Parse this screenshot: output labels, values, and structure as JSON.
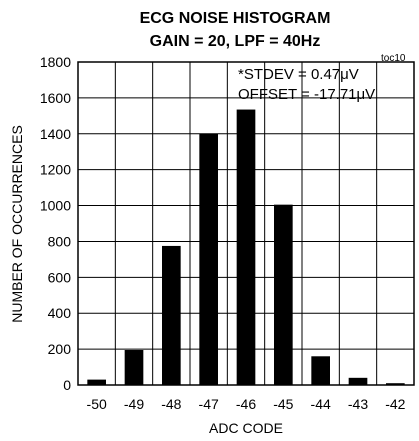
{
  "chart_data": {
    "type": "bar",
    "title": "ECG NOISE HISTOGRAM",
    "subtitle": "GAIN = 20, LPF = 40Hz",
    "figure_tag": "toc10",
    "xlabel": "ADC CODE",
    "ylabel": "NUMBER OF OCCURRENCES",
    "categories": [
      "-50",
      "-49",
      "-48",
      "-47",
      "-46",
      "-45",
      "-44",
      "-43",
      "-42"
    ],
    "values": [
      30,
      195,
      775,
      1400,
      1535,
      1005,
      160,
      40,
      10
    ],
    "ylim": [
      0,
      1800
    ],
    "yticks": [
      0,
      200,
      400,
      600,
      800,
      1000,
      1200,
      1400,
      1600,
      1800
    ],
    "grid": true,
    "annotations": [
      "*STDEV = 0.47μV",
      "OFFSET = -17.71μV"
    ],
    "bar_color": "#000000"
  }
}
